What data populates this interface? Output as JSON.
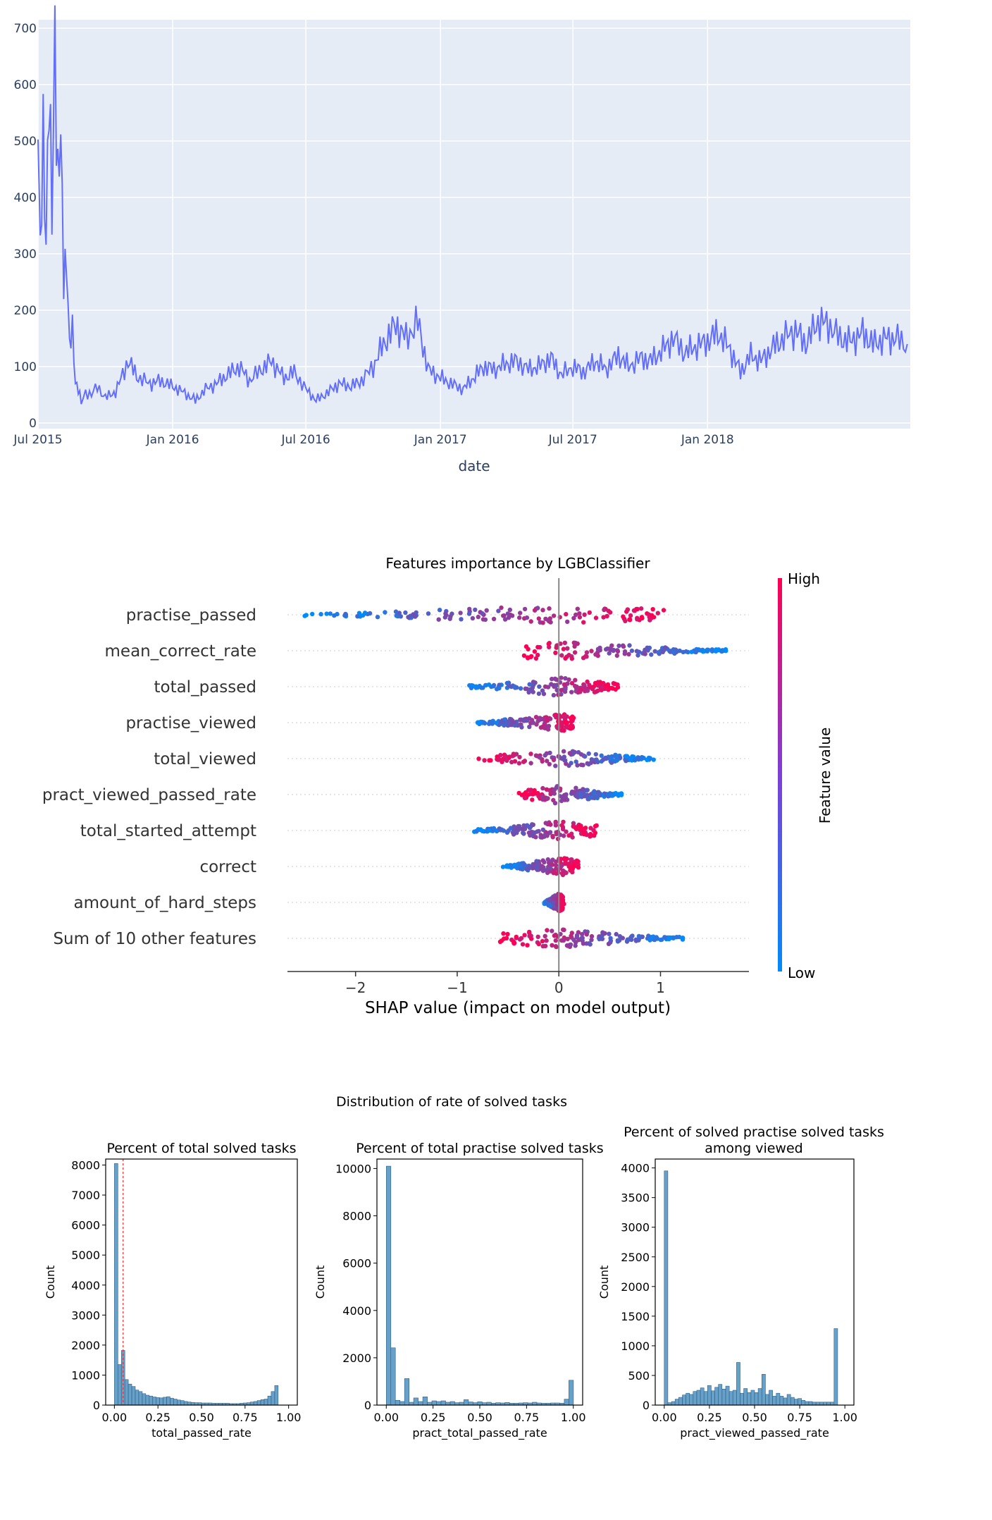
{
  "chart_data": [
    {
      "type": "line",
      "title": "",
      "xlabel": "date",
      "ylabel": "",
      "x_tick_labels": [
        "Jul 2015",
        "Jan 2016",
        "Jul 2016",
        "Jan 2017",
        "Jul 2017",
        "Jan 2018"
      ],
      "x_ticks": [
        "2015-07-01",
        "2016-01-01",
        "2016-07-01",
        "2017-01-01",
        "2017-07-01",
        "2018-01-01"
      ],
      "xlim": [
        "2015-07-01",
        "2018-10-05"
      ],
      "y_ticks": [
        0,
        100,
        200,
        300,
        400,
        500,
        600,
        700
      ],
      "ylim": [
        -10,
        715
      ],
      "grid": true,
      "color": "#636efa",
      "background": "#e5ecf6",
      "series": [
        {
          "x": [
            "2015-07-01",
            "2015-07-04",
            "2015-07-08",
            "2015-07-12",
            "2015-07-16",
            "2015-07-20",
            "2015-07-24",
            "2015-07-28",
            "2015-08-01",
            "2015-08-05",
            "2015-08-09",
            "2015-08-13",
            "2015-08-17",
            "2015-08-21",
            "2015-08-25",
            "2015-08-29",
            "2015-09-04",
            "2015-09-12",
            "2015-09-20",
            "2015-10-01",
            "2015-10-15",
            "2015-11-01",
            "2015-11-15",
            "2015-12-01",
            "2015-12-15",
            "2016-01-01",
            "2016-01-15",
            "2016-02-01",
            "2016-02-15",
            "2016-03-01",
            "2016-03-15",
            "2016-04-01",
            "2016-04-15",
            "2016-05-01",
            "2016-05-15",
            "2016-06-01",
            "2016-06-15",
            "2016-07-01",
            "2016-07-15",
            "2016-08-01",
            "2016-08-15",
            "2016-09-01",
            "2016-09-15",
            "2016-10-01",
            "2016-10-15",
            "2016-11-01",
            "2016-11-15",
            "2016-12-01",
            "2016-12-15",
            "2017-01-01",
            "2017-01-15",
            "2017-02-01",
            "2017-02-15",
            "2017-03-01",
            "2017-03-15",
            "2017-04-01",
            "2017-04-15",
            "2017-05-01",
            "2017-05-15",
            "2017-06-01",
            "2017-06-15",
            "2017-07-01",
            "2017-07-15",
            "2017-08-01",
            "2017-08-15",
            "2017-09-01",
            "2017-09-15",
            "2017-10-01",
            "2017-10-15",
            "2017-11-01",
            "2017-11-15",
            "2017-12-01",
            "2017-12-15",
            "2018-01-01",
            "2018-01-15",
            "2018-02-01",
            "2018-02-15",
            "2018-03-01",
            "2018-03-15",
            "2018-04-01",
            "2018-04-15",
            "2018-05-01",
            "2018-05-15",
            "2018-06-01",
            "2018-06-15",
            "2018-07-01",
            "2018-07-15",
            "2018-08-01",
            "2018-08-15",
            "2018-09-01",
            "2018-09-15",
            "2018-10-01"
          ],
          "y": [
            480,
            290,
            520,
            330,
            580,
            360,
            710,
            420,
            490,
            270,
            295,
            130,
            165,
            75,
            60,
            35,
            55,
            50,
            65,
            45,
            55,
            110,
            80,
            70,
            75,
            65,
            55,
            40,
            60,
            70,
            85,
            100,
            75,
            95,
            110,
            80,
            90,
            60,
            40,
            55,
            70,
            65,
            75,
            100,
            140,
            175,
            150,
            180,
            95,
            80,
            70,
            60,
            80,
            100,
            95,
            105,
            110,
            95,
            100,
            115,
            85,
            100,
            90,
            110,
            95,
            120,
            100,
            115,
            110,
            130,
            150,
            125,
            135,
            145,
            160,
            130,
            90,
            120,
            110,
            135,
            150,
            165,
            140,
            180,
            175,
            150,
            145,
            160,
            140,
            150,
            150,
            140
          ]
        }
      ]
    },
    {
      "type": "scatter",
      "title": "Features importance by LGBClassifier",
      "xlabel": "SHAP value (impact on model output)",
      "ylabel": "",
      "x_ticks": [
        -2,
        -1,
        0,
        1
      ],
      "x_tick_labels": [
        "−2",
        "−1",
        "0",
        "1"
      ],
      "xlim": [
        -2.67,
        1.87
      ],
      "categories": [
        "practise_passed",
        "mean_correct_rate",
        "total_passed",
        "practise_viewed",
        "total_viewed",
        "pract_viewed_passed_rate",
        "total_started_attempt",
        "correct",
        "amount_of_hard_steps",
        "Sum of 10 other features"
      ],
      "feature_ranges": [
        [
          -2.5,
          1.05
        ],
        [
          -0.35,
          1.65
        ],
        [
          -0.9,
          0.6
        ],
        [
          -0.8,
          0.15
        ],
        [
          -0.8,
          0.95
        ],
        [
          -0.4,
          0.62
        ],
        [
          -0.85,
          0.38
        ],
        [
          -0.55,
          0.2
        ],
        [
          -0.15,
          0.05
        ],
        [
          -0.58,
          1.22
        ]
      ],
      "colorbar": {
        "label": "Feature value",
        "high": "High",
        "low": "Low",
        "high_color": "#ff0052",
        "low_color": "#008bfb"
      }
    },
    {
      "type": "bar",
      "suptitle": "Distribution of rate of solved tasks",
      "subplots": [
        {
          "title": "Percent of total solved tasks",
          "xlabel": "total_passed_rate",
          "ylabel": "Count",
          "ylim": [
            0,
            8200
          ],
          "y_ticks": [
            0,
            1000,
            2000,
            3000,
            4000,
            5000,
            6000,
            7000,
            8000
          ],
          "x_ticks": [
            "0.00",
            "0.25",
            "0.50",
            "0.75",
            "1.00"
          ],
          "vline": 0.05,
          "bin_width": 0.02,
          "values": [
            8050,
            1350,
            1820,
            850,
            700,
            620,
            500,
            450,
            380,
            330,
            300,
            270,
            250,
            240,
            260,
            280,
            230,
            200,
            170,
            150,
            120,
            100,
            90,
            80,
            80,
            70,
            70,
            70,
            60,
            60,
            60,
            60,
            60,
            50,
            50,
            50,
            60,
            70,
            80,
            100,
            120,
            150,
            180,
            200,
            300,
            450,
            650
          ]
        },
        {
          "title": "Percent of total practise solved tasks",
          "xlabel": "pract_total_passed_rate",
          "ylabel": "Count",
          "ylim": [
            0,
            10400
          ],
          "y_ticks": [
            0,
            2000,
            4000,
            6000,
            8000,
            10000
          ],
          "x_ticks": [
            "0.00",
            "0.25",
            "0.50",
            "0.75",
            "1.00"
          ],
          "bin_width": 0.0244,
          "values": [
            10100,
            2420,
            200,
            150,
            1120,
            120,
            300,
            150,
            350,
            120,
            180,
            150,
            180,
            120,
            150,
            100,
            120,
            230,
            130,
            100,
            140,
            100,
            120,
            80,
            100,
            90,
            110,
            80,
            80,
            90,
            100,
            90,
            120,
            90,
            80,
            80,
            90,
            90,
            80,
            250,
            1050
          ]
        },
        {
          "title": "Percent of solved practise solved tasks among viewed",
          "xlabel": "pract_viewed_passed_rate",
          "ylabel": "Count",
          "ylim": [
            0,
            4150
          ],
          "y_ticks": [
            0,
            500,
            1000,
            1500,
            2000,
            2500,
            3000,
            3500,
            4000
          ],
          "x_ticks": [
            "0.00",
            "0.25",
            "0.50",
            "0.75",
            "1.00"
          ],
          "bin_width": 0.02,
          "values": [
            3950,
            40,
            60,
            100,
            130,
            170,
            200,
            180,
            230,
            250,
            290,
            230,
            330,
            240,
            300,
            350,
            270,
            320,
            230,
            250,
            720,
            200,
            280,
            210,
            250,
            210,
            280,
            520,
            180,
            250,
            150,
            200,
            150,
            120,
            180,
            130,
            100,
            110,
            80,
            60,
            60,
            50,
            50,
            50,
            50,
            50,
            50,
            1290
          ]
        }
      ]
    }
  ]
}
